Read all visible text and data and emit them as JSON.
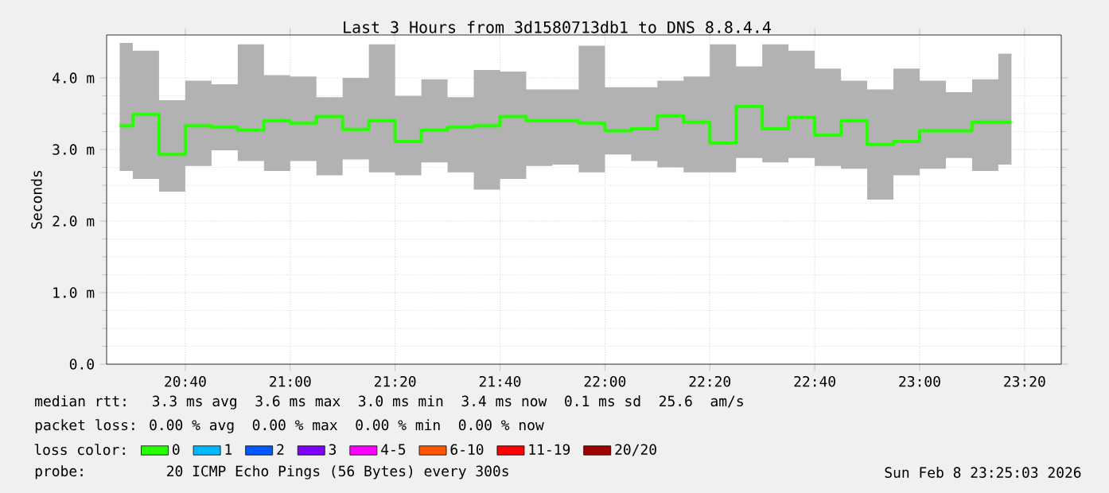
{
  "chart_data": {
    "type": "step",
    "title": "Last 3 Hours from 3d1580713db1 to DNS 8.8.4.4",
    "ylabel": "Seconds",
    "legend_title": "loss color:",
    "x": [
      20.4583,
      20.5417,
      20.625,
      20.7083,
      20.7917,
      20.875,
      20.9583,
      21.0417,
      21.125,
      21.2083,
      21.2917,
      21.375,
      21.4583,
      21.5417,
      21.625,
      21.7083,
      21.7917,
      21.875,
      21.9583,
      22.0417,
      22.125,
      22.2083,
      22.2917,
      22.375,
      22.4583,
      22.5417,
      22.625,
      22.7083,
      22.7917,
      22.875,
      22.9583,
      23.0417,
      23.125,
      23.2083,
      23.2917
    ],
    "series": [
      {
        "name": "0",
        "color": "#26ff00",
        "values": [
          3.33,
          3.49,
          2.93,
          3.33,
          3.31,
          3.27,
          3.4,
          3.37,
          3.46,
          3.28,
          3.4,
          3.11,
          3.27,
          3.31,
          3.33,
          3.46,
          3.4,
          3.4,
          3.37,
          3.26,
          3.29,
          3.47,
          3.38,
          3.09,
          3.6,
          3.29,
          3.45,
          3.2,
          3.4,
          3.07,
          3.11,
          3.26,
          3.26,
          3.38,
          3.38
        ],
        "lower": [
          2.7,
          2.59,
          2.41,
          2.77,
          2.99,
          2.84,
          2.7,
          2.84,
          2.64,
          2.86,
          2.68,
          2.64,
          2.82,
          2.68,
          2.44,
          2.59,
          2.77,
          2.79,
          2.68,
          2.93,
          2.84,
          2.75,
          2.68,
          2.68,
          2.88,
          2.82,
          2.88,
          2.77,
          2.73,
          2.3,
          2.64,
          2.73,
          2.88,
          2.7,
          2.79
        ],
        "upper": [
          4.49,
          4.38,
          3.69,
          3.96,
          3.91,
          4.47,
          4.04,
          4.02,
          3.73,
          4.0,
          4.47,
          3.75,
          3.98,
          3.73,
          4.11,
          4.09,
          3.84,
          3.84,
          4.45,
          3.87,
          3.87,
          3.96,
          4.02,
          4.47,
          4.16,
          4.47,
          4.38,
          4.13,
          3.96,
          3.84,
          4.13,
          3.96,
          3.8,
          3.98,
          4.34
        ]
      },
      {
        "name": "1",
        "color": "#00b8ff",
        "values": [
          null,
          null,
          null,
          null,
          null,
          null,
          null,
          null,
          null,
          null,
          null,
          null,
          null,
          null,
          null,
          null,
          null,
          null,
          null,
          null,
          null,
          null,
          null,
          null,
          null,
          null,
          null,
          null,
          null,
          null,
          null,
          null,
          null,
          null,
          null
        ]
      },
      {
        "name": "2",
        "color": "#0059ff",
        "values": [
          null,
          null,
          null,
          null,
          null,
          null,
          null,
          null,
          null,
          null,
          null,
          null,
          null,
          null,
          null,
          null,
          null,
          null,
          null,
          null,
          null,
          null,
          null,
          null,
          null,
          null,
          null,
          null,
          null,
          null,
          null,
          null,
          null,
          null,
          null
        ]
      },
      {
        "name": "3",
        "color": "#7e00ff",
        "values": [
          null,
          null,
          null,
          null,
          null,
          null,
          null,
          null,
          null,
          null,
          null,
          null,
          null,
          null,
          null,
          null,
          null,
          null,
          null,
          null,
          null,
          null,
          null,
          null,
          null,
          null,
          null,
          null,
          null,
          null,
          null,
          null,
          null,
          null,
          null
        ]
      },
      {
        "name": "4-5",
        "color": "#ff00ff",
        "values": [
          null,
          null,
          null,
          null,
          null,
          null,
          null,
          null,
          null,
          null,
          null,
          null,
          null,
          null,
          null,
          null,
          null,
          null,
          null,
          null,
          null,
          null,
          null,
          null,
          null,
          null,
          null,
          null,
          null,
          null,
          null,
          null,
          null,
          null,
          null
        ]
      },
      {
        "name": "6-10",
        "color": "#ff5500",
        "values": [
          null,
          null,
          null,
          null,
          null,
          null,
          null,
          null,
          null,
          null,
          null,
          null,
          null,
          null,
          null,
          null,
          null,
          null,
          null,
          null,
          null,
          null,
          null,
          null,
          null,
          null,
          null,
          null,
          null,
          null,
          null,
          null,
          null,
          null,
          null
        ]
      },
      {
        "name": "11-19",
        "color": "#ff0000",
        "values": [
          null,
          null,
          null,
          null,
          null,
          null,
          null,
          null,
          null,
          null,
          null,
          null,
          null,
          null,
          null,
          null,
          null,
          null,
          null,
          null,
          null,
          null,
          null,
          null,
          null,
          null,
          null,
          null,
          null,
          null,
          null,
          null,
          null,
          null,
          null
        ]
      },
      {
        "name": "20/20",
        "color": "#a10000",
        "values": [
          null,
          null,
          null,
          null,
          null,
          null,
          null,
          null,
          null,
          null,
          null,
          null,
          null,
          null,
          null,
          null,
          null,
          null,
          null,
          null,
          null,
          null,
          null,
          null,
          null,
          null,
          null,
          null,
          null,
          null,
          null,
          null,
          null,
          null,
          null
        ]
      }
    ],
    "xlim": [
      20.4167,
      23.45
    ],
    "ylim": [
      0,
      4.6
    ],
    "xticks": [
      {
        "value": 20.6667,
        "label": "20:40"
      },
      {
        "value": 21.0,
        "label": "21:00"
      },
      {
        "value": 21.3333,
        "label": "21:20"
      },
      {
        "value": 21.6667,
        "label": "21:40"
      },
      {
        "value": 22.0,
        "label": "22:00"
      },
      {
        "value": 22.3333,
        "label": "22:20"
      },
      {
        "value": 22.6667,
        "label": "22:40"
      },
      {
        "value": 23.0,
        "label": "23:00"
      },
      {
        "value": 23.3333,
        "label": "23:20"
      }
    ],
    "yticks": [
      {
        "value": 0,
        "label": "0.0"
      },
      {
        "value": 1,
        "label": "1.0 m"
      },
      {
        "value": 2,
        "label": "2.0 m"
      },
      {
        "value": 3,
        "label": "3.0 m"
      },
      {
        "value": 4,
        "label": "4.0 m"
      }
    ],
    "grid": true,
    "legend": "bottom",
    "marker": "none",
    "line_style": "solid",
    "annotations": [
      "median rtt:  3.3 ms avg  3.6 ms max  3.0 ms min  3.4 ms now  0.1 ms sd  25.6  am/s",
      "packet loss: 0.00 % avg  0.00 % max  0.00 % min  0.00 % now",
      "probe:       20 ICMP Echo Pings (56 Bytes) every 300s",
      "Sun Feb  8 23:25:03 2026"
    ]
  }
}
